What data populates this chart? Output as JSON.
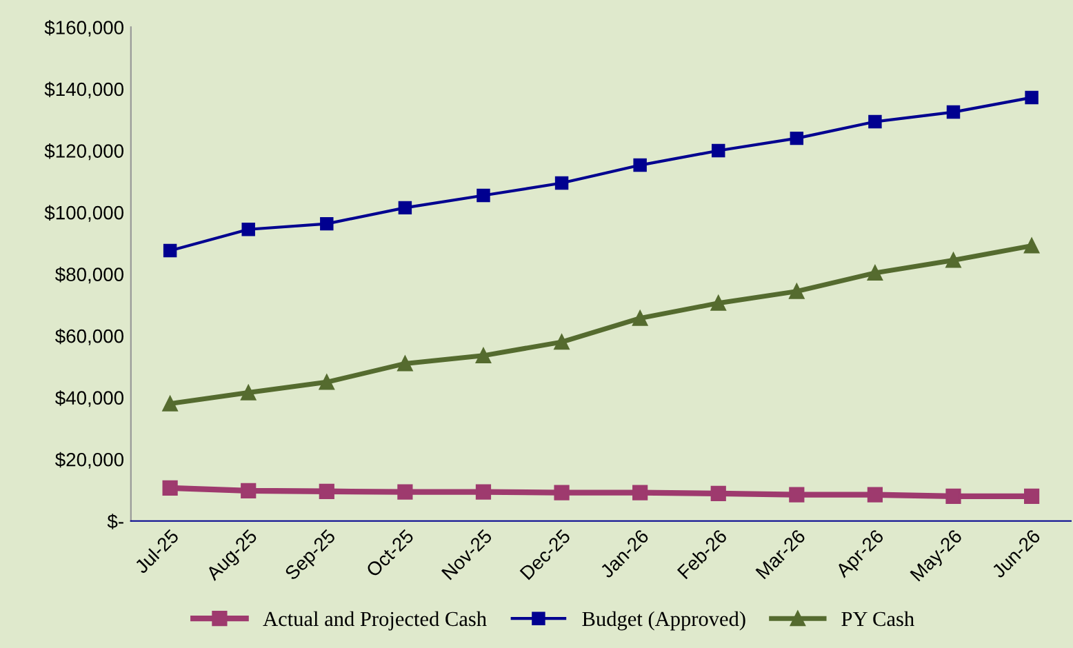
{
  "chart_data": {
    "type": "line",
    "categories": [
      "Jul-25",
      "Aug-25",
      "Sep-25",
      "Oct-25",
      "Nov-25",
      "Dec-25",
      "Jan-26",
      "Feb-26",
      "Mar-26",
      "Apr-26",
      "May-26",
      "Jun-26"
    ],
    "series": [
      {
        "name": "Actual and Projected Cash",
        "color": "#9e3a6e",
        "marker": "square",
        "values": [
          10700,
          9800,
          9600,
          9400,
          9400,
          9200,
          9200,
          8900,
          8500,
          8500,
          8000,
          8000
        ]
      },
      {
        "name": "Budget (Approved)",
        "color": "#000090",
        "marker": "square",
        "values": [
          87600,
          94500,
          96300,
          101500,
          105500,
          109500,
          115300,
          120000,
          124000,
          129400,
          132500,
          137200
        ]
      },
      {
        "name": "PY Cash",
        "color": "#556b2f",
        "marker": "triangle",
        "values": [
          38000,
          41600,
          45000,
          51000,
          53600,
          58000,
          65700,
          70600,
          74400,
          80400,
          84500,
          89200
        ]
      }
    ],
    "ylim": [
      0,
      160000
    ],
    "yticks": [
      {
        "value": 0,
        "label": "$-"
      },
      {
        "value": 20000,
        "label": "$20,000"
      },
      {
        "value": 40000,
        "label": "$40,000"
      },
      {
        "value": 60000,
        "label": "$60,000"
      },
      {
        "value": 80000,
        "label": "$80,000"
      },
      {
        "value": 100000,
        "label": "$100,000"
      },
      {
        "value": 120000,
        "label": "$120,000"
      },
      {
        "value": 140000,
        "label": "$140,000"
      },
      {
        "value": 160000,
        "label": "$160,000"
      }
    ],
    "grid": false,
    "legend": "bottom"
  }
}
